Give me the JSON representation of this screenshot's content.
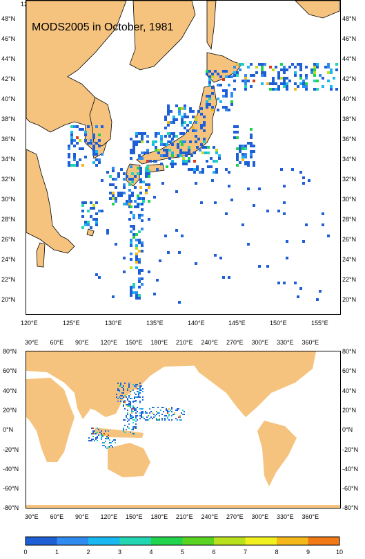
{
  "top_map": {
    "title": "MODS2005 in October, 1981",
    "x_ticks": [
      "120°E",
      "125°E",
      "130°E",
      "135°E",
      "140°E",
      "145°E",
      "150°E",
      "155°E"
    ],
    "y_ticks": [
      "48°N",
      "46°N",
      "44°N",
      "42°N",
      "40°N",
      "38°N",
      "36°N",
      "34°N",
      "32°N",
      "30°N",
      "28°N",
      "26°N",
      "24°N",
      "22°N",
      "20°N"
    ]
  },
  "bottom_map": {
    "x_ticks": [
      "30°E",
      "60°E",
      "90°E",
      "120°E",
      "150°E",
      "180°E",
      "210°E",
      "240°E",
      "270°E",
      "300°E",
      "330°E",
      "360°E"
    ],
    "y_ticks": [
      "80°N",
      "60°N",
      "40°N",
      "20°N",
      "0°N",
      "-20°N",
      "-40°N",
      "-60°N",
      "-80°N"
    ]
  },
  "colorbar": {
    "labels": [
      "0",
      "1",
      "2",
      "3",
      "4",
      "5",
      "6",
      "7",
      "8",
      "9",
      "10"
    ],
    "colors": [
      "#1f5fd6",
      "#2f8bf0",
      "#19b8f0",
      "#22d6b2",
      "#22d44c",
      "#5ad420",
      "#b8e01c",
      "#f0f020",
      "#f5b81a",
      "#f27a16",
      "#e03a18"
    ]
  },
  "colors": {
    "land": "#f5c37e",
    "ocean": "#ffffff"
  }
}
